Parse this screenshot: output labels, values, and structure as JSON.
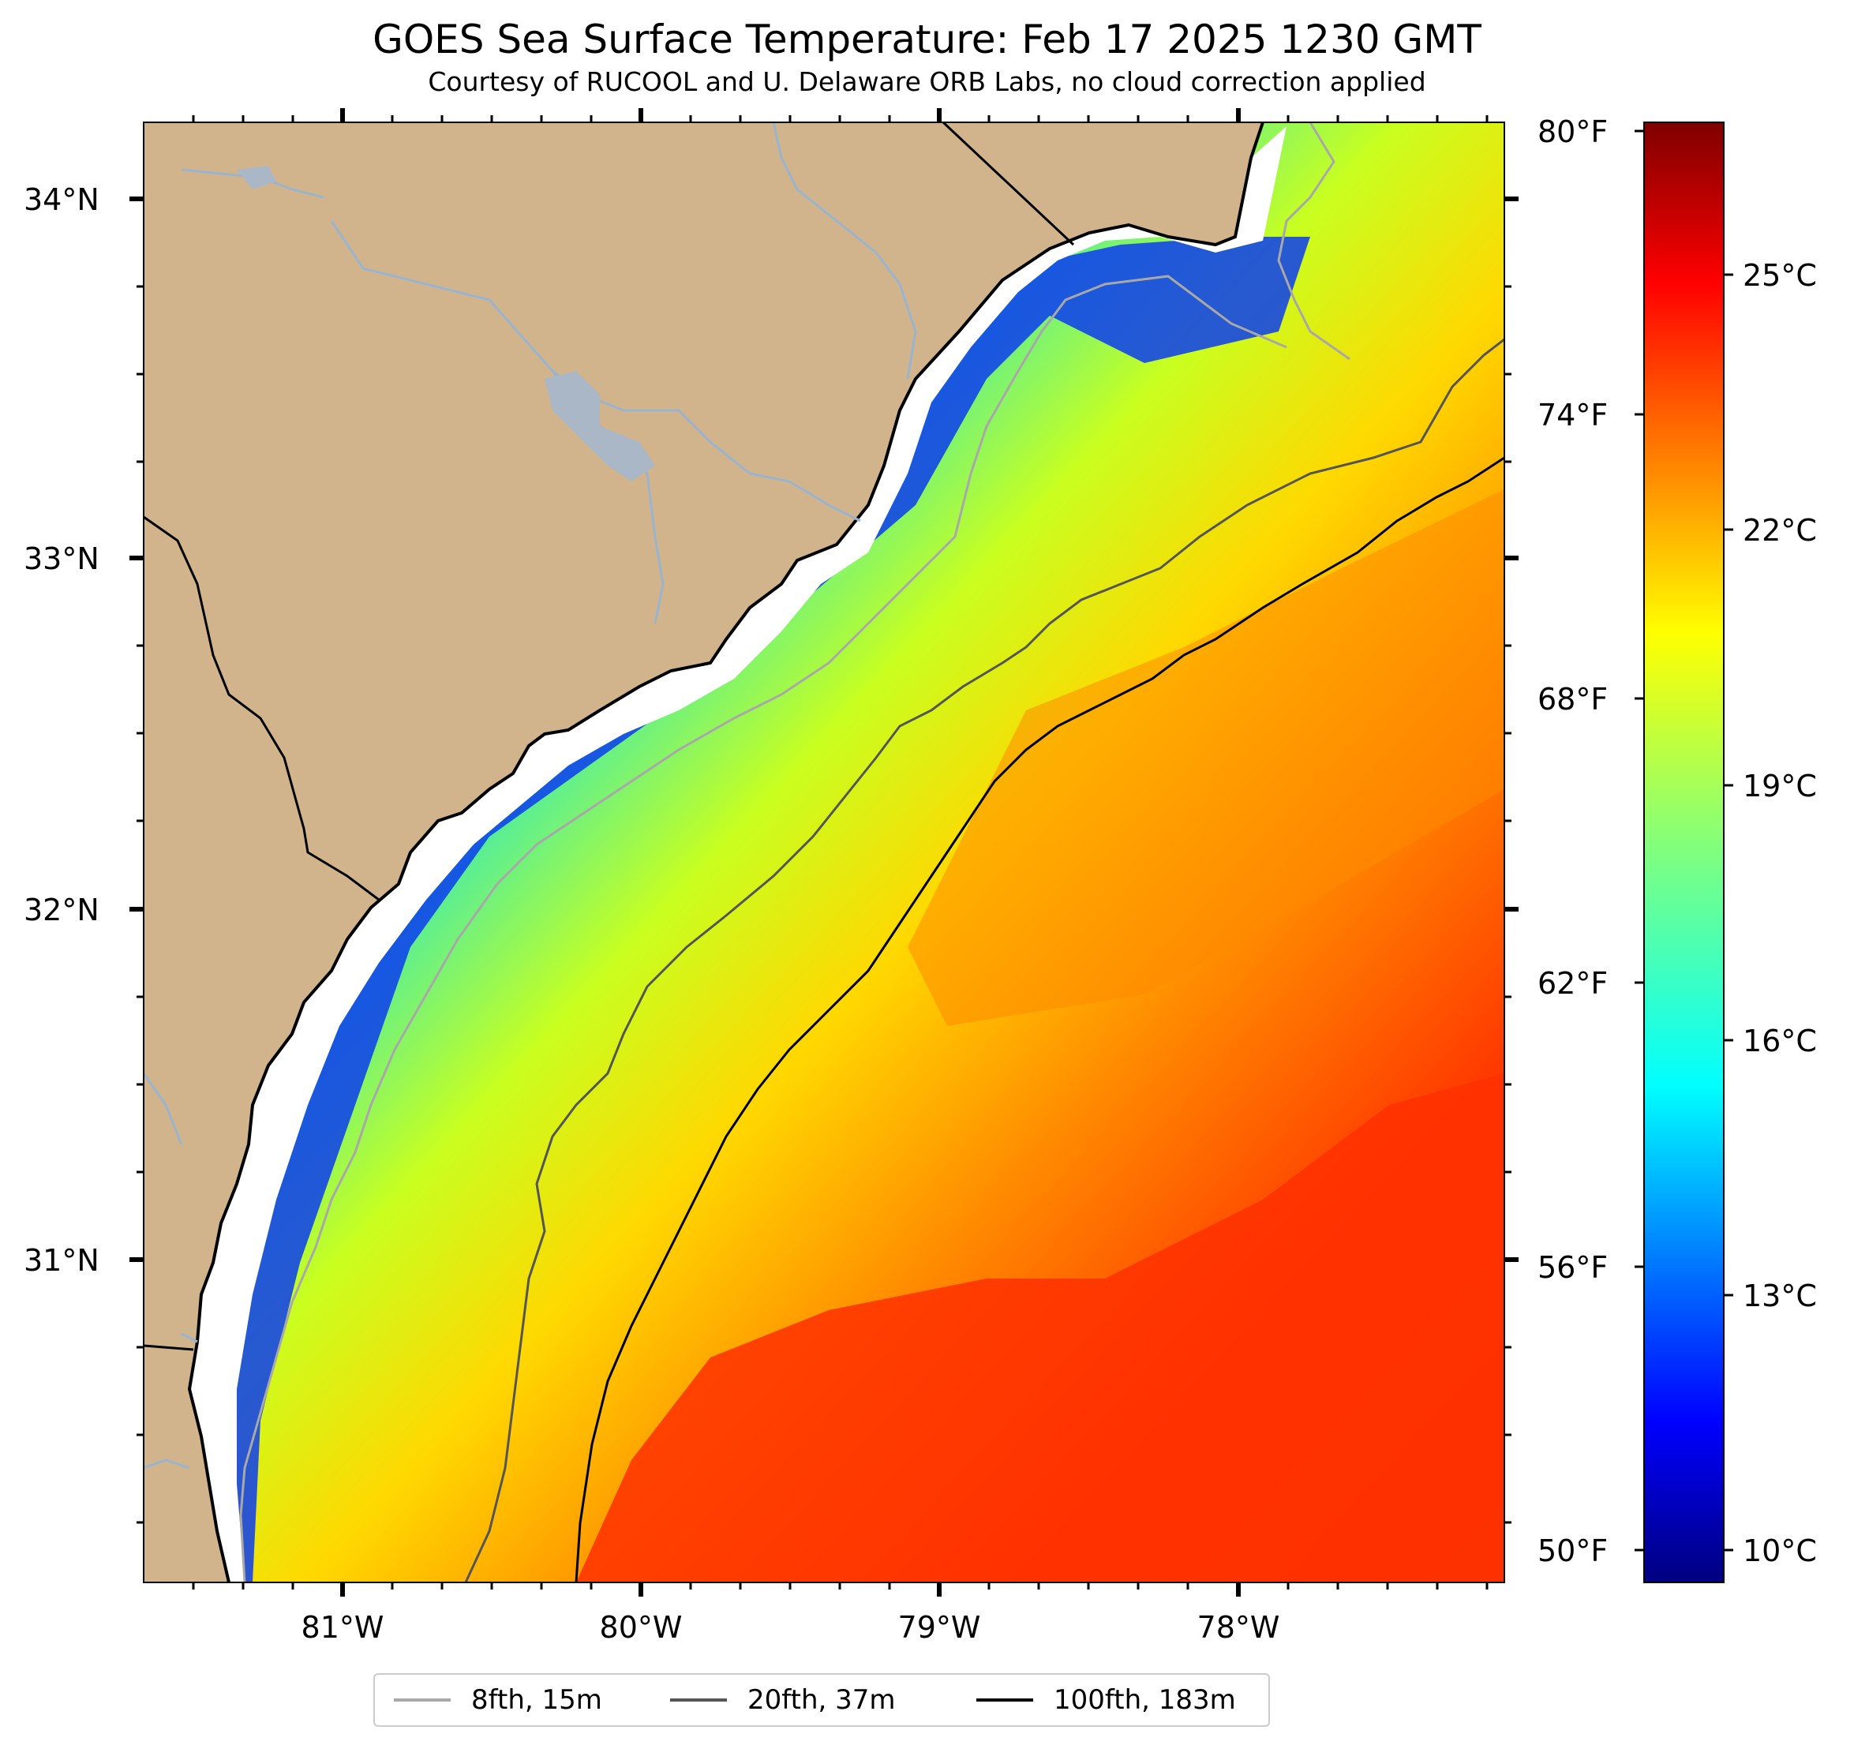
{
  "title": "GOES Sea Surface Temperature: Feb 17 2025 1230 GMT",
  "subtitle": "Courtesy of RUCOOL and U. Delaware ORB Labs, no cloud correction applied",
  "map": {
    "land_color": "#d2b48c",
    "river_color": "#9ab4cf",
    "lat_labels": [
      "34°N",
      "33°N",
      "32°N",
      "31°N"
    ],
    "lon_labels": [
      "81°W",
      "80°W",
      "79°W",
      "78°W"
    ]
  },
  "colorbar": {
    "colormap": "jet",
    "f_labels": [
      "80°F",
      "74°F",
      "68°F",
      "62°F",
      "56°F",
      "50°F"
    ],
    "c_labels": [
      "25°C",
      "22°C",
      "19°C",
      "16°C",
      "13°C",
      "10°C"
    ]
  },
  "legend": [
    {
      "label": "8fth, 15m",
      "color": "#a8a8a8"
    },
    {
      "label": "20fth, 37m",
      "color": "#555555"
    },
    {
      "label": "100fth, 183m",
      "color": "#000000"
    }
  ]
}
